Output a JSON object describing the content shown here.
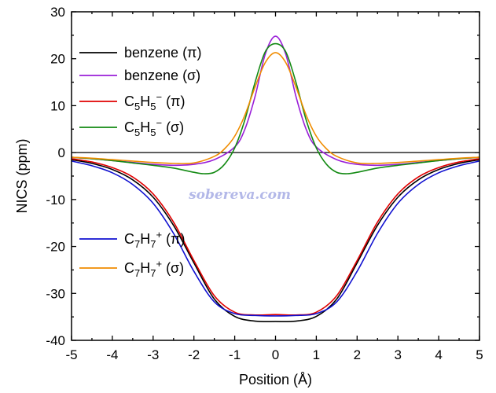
{
  "chart_data": {
    "type": "line",
    "xlabel": "Position (Å)",
    "ylabel": "NICS (ppm)",
    "xlim": [
      -5,
      5
    ],
    "ylim": [
      -40,
      30
    ],
    "x_ticks": [
      -5,
      -4,
      -3,
      -2,
      -1,
      0,
      1,
      2,
      3,
      4,
      5
    ],
    "y_ticks": [
      -40,
      -30,
      -20,
      -10,
      0,
      10,
      20,
      30
    ],
    "zero_line": true,
    "grid": false,
    "legend_position": "left",
    "watermark": "sobereva.com",
    "series": [
      {
        "name": "benzene (π)",
        "legend": {
          "base": "benzene (π)"
        },
        "color": "#000000",
        "x": [
          -5,
          -4.5,
          -4,
          -3.5,
          -3,
          -2.5,
          -2,
          -1.5,
          -1,
          -0.5,
          0,
          0.5,
          1,
          1.5,
          2,
          2.5,
          3,
          3.5,
          4,
          4.5,
          5
        ],
        "y": [
          -1.5,
          -2.3,
          -3.6,
          -5.8,
          -9.5,
          -15.5,
          -23.5,
          -31.2,
          -34.9,
          -35.9,
          -36.0,
          -35.9,
          -34.9,
          -31.2,
          -23.5,
          -15.5,
          -9.5,
          -5.8,
          -3.6,
          -2.3,
          -1.5
        ]
      },
      {
        "name": "benzene (σ)",
        "legend": {
          "base": "benzene (σ)"
        },
        "color": "#9a1fd8",
        "x": [
          -5,
          -4.5,
          -4,
          -3.5,
          -3,
          -2.5,
          -2,
          -1.5,
          -1,
          -0.75,
          -0.5,
          -0.25,
          0,
          0.25,
          0.5,
          0.75,
          1,
          1.5,
          2,
          2.5,
          3,
          3.5,
          4,
          4.5,
          5
        ],
        "y": [
          -1.0,
          -1.3,
          -1.7,
          -2.1,
          -2.5,
          -2.7,
          -2.5,
          -1.5,
          1.2,
          5.0,
          12.0,
          21.0,
          24.8,
          21.0,
          12.0,
          5.0,
          1.2,
          -1.5,
          -2.5,
          -2.7,
          -2.5,
          -2.1,
          -1.7,
          -1.3,
          -1.0
        ]
      },
      {
        "name": "C5H5⁻ (π)",
        "legend": {
          "base": "C",
          "parts": [
            [
              "5",
              "sub"
            ],
            [
              "H",
              "text"
            ],
            [
              "5",
              "sub"
            ],
            [
              "−",
              "sup"
            ],
            [
              " (π)",
              "text"
            ]
          ]
        },
        "color": "#e00000",
        "x": [
          -5,
          -4.5,
          -4,
          -3.5,
          -3,
          -2.5,
          -2,
          -1.5,
          -1,
          -0.5,
          0,
          0.5,
          1,
          1.5,
          2,
          2.5,
          3,
          3.5,
          4,
          4.5,
          5
        ],
        "y": [
          -1.3,
          -2.0,
          -3.2,
          -5.2,
          -8.8,
          -14.8,
          -23.0,
          -30.5,
          -34.0,
          -34.6,
          -34.5,
          -34.6,
          -34.0,
          -30.5,
          -23.0,
          -14.8,
          -8.8,
          -5.2,
          -3.2,
          -2.0,
          -1.3
        ]
      },
      {
        "name": "C5H5⁻ (σ)",
        "legend": {
          "base": "C",
          "parts": [
            [
              "5",
              "sub"
            ],
            [
              "H",
              "text"
            ],
            [
              "5",
              "sub"
            ],
            [
              "−",
              "sup"
            ],
            [
              " (σ)",
              "text"
            ]
          ]
        },
        "color": "#138a13",
        "x": [
          -5,
          -4.5,
          -4,
          -3.5,
          -3,
          -2.5,
          -2,
          -1.75,
          -1.5,
          -1.25,
          -1,
          -0.75,
          -0.5,
          -0.25,
          0,
          0.25,
          0.5,
          0.75,
          1,
          1.25,
          1.5,
          1.75,
          2,
          2.5,
          3,
          3.5,
          4,
          4.5,
          5
        ],
        "y": [
          -1.0,
          -1.3,
          -1.7,
          -2.2,
          -2.7,
          -3.3,
          -4.2,
          -4.5,
          -4.2,
          -2.5,
          1.0,
          7.0,
          15.0,
          21.5,
          23.2,
          21.5,
          15.0,
          7.0,
          1.0,
          -2.5,
          -4.2,
          -4.5,
          -4.2,
          -3.3,
          -2.7,
          -2.2,
          -1.7,
          -1.3,
          -1.0
        ]
      },
      {
        "name": "C7H7⁺ (π)",
        "legend": {
          "base": "C",
          "parts": [
            [
              "7",
              "sub"
            ],
            [
              "H",
              "text"
            ],
            [
              "7",
              "sub"
            ],
            [
              "+",
              "sup"
            ],
            [
              " (π)",
              "text"
            ]
          ]
        },
        "color": "#1010d0",
        "x": [
          -5,
          -4.5,
          -4,
          -3.5,
          -3,
          -2.5,
          -2,
          -1.5,
          -1,
          -0.5,
          0,
          0.5,
          1,
          1.5,
          2,
          2.5,
          3,
          3.5,
          4,
          4.5,
          5
        ],
        "y": [
          -1.8,
          -2.8,
          -4.3,
          -6.8,
          -10.8,
          -17.2,
          -25.3,
          -31.8,
          -34.3,
          -34.7,
          -34.8,
          -34.7,
          -34.3,
          -31.8,
          -25.3,
          -17.2,
          -10.8,
          -6.8,
          -4.3,
          -2.8,
          -1.8
        ]
      },
      {
        "name": "C7H7⁺ (σ)",
        "legend": {
          "base": "C",
          "parts": [
            [
              "7",
              "sub"
            ],
            [
              "H",
              "text"
            ],
            [
              "7",
              "sub"
            ],
            [
              "+",
              "sup"
            ],
            [
              " (σ)",
              "text"
            ]
          ]
        },
        "color": "#f08c00",
        "x": [
          -5,
          -4.5,
          -4,
          -3.5,
          -3,
          -2.5,
          -2,
          -1.5,
          -1.25,
          -1,
          -0.75,
          -0.5,
          -0.25,
          0,
          0.25,
          0.5,
          0.75,
          1,
          1.25,
          1.5,
          2,
          2.5,
          3,
          3.5,
          4,
          4.5,
          5
        ],
        "y": [
          -1.0,
          -1.2,
          -1.5,
          -1.8,
          -2.1,
          -2.3,
          -2.2,
          -0.8,
          0.8,
          3.5,
          8.0,
          14.0,
          19.2,
          21.3,
          19.2,
          14.0,
          8.0,
          3.5,
          0.8,
          -0.8,
          -2.2,
          -2.3,
          -2.1,
          -1.8,
          -1.5,
          -1.2,
          -1.0
        ]
      }
    ]
  }
}
